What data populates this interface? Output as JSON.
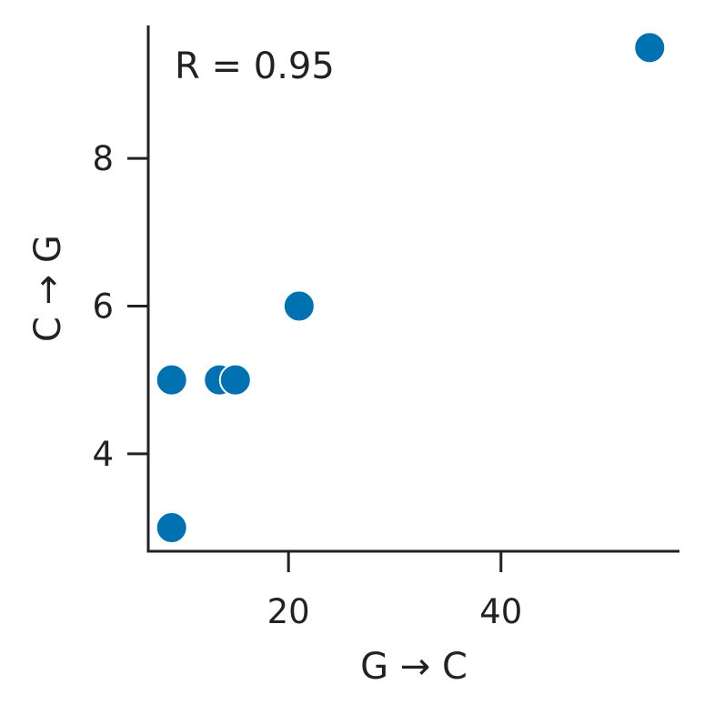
{
  "chart_data": {
    "type": "scatter",
    "title": "",
    "xlabel": "G → C",
    "ylabel": "C → G",
    "xlim": [
      6.8,
      56.8
    ],
    "ylim": [
      2.68,
      9.8
    ],
    "xticks": [
      20,
      40
    ],
    "yticks": [
      4,
      6,
      8
    ],
    "grid": false,
    "annotation": "R = 0.95",
    "marker_color": "#0072b2",
    "points": [
      {
        "x": 9,
        "y": 5
      },
      {
        "x": 9,
        "y": 3
      },
      {
        "x": 13.5,
        "y": 5
      },
      {
        "x": 15,
        "y": 5
      },
      {
        "x": 21,
        "y": 6
      },
      {
        "x": 54,
        "y": 9.5
      }
    ]
  }
}
